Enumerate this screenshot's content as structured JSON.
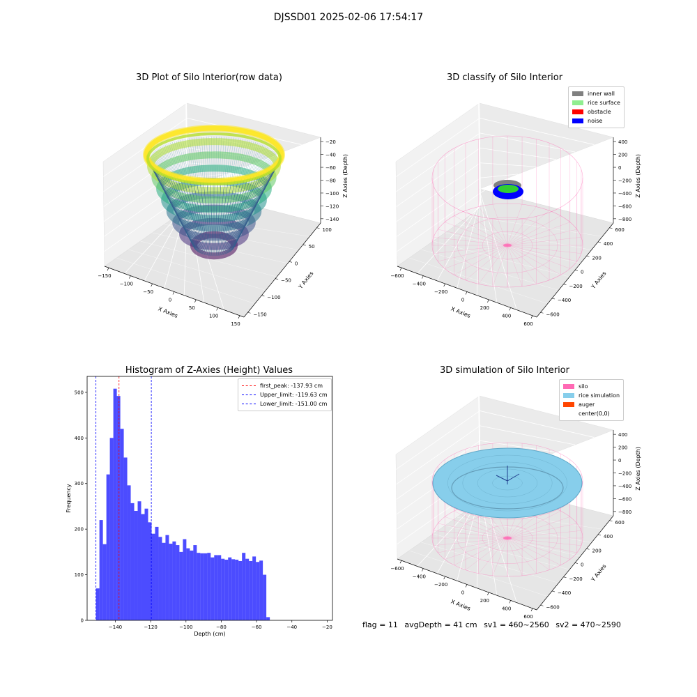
{
  "suptitle": "DJSSD01 2025-02-06 17:54:17",
  "footer": {
    "flag": "flag = 11",
    "avg": "avgDepth = 41 cm",
    "sv1": "sv1 = 460~2560",
    "sv2": "sv2 = 470~2590"
  },
  "chart_data": [
    {
      "type": "scatter",
      "title": "3D Plot of Silo Interior(row data)",
      "xlabel": "X Axies",
      "ylabel": "Y Axies",
      "zlabel": "Z Axies (Depth)",
      "xticks": [
        "−150",
        "−100",
        "−50",
        "0",
        "50",
        "100",
        "150"
      ],
      "yticks": [
        "−150",
        "−100",
        "−50",
        "0",
        "50",
        "100"
      ],
      "zticks": [
        "−20",
        "−40",
        "−60",
        "−80",
        "−100",
        "−120",
        "−140"
      ],
      "xlim": [
        -150,
        150
      ],
      "ylim": [
        -150,
        120
      ],
      "zlim": [
        -150,
        -20
      ],
      "colormap": "viridis"
    },
    {
      "type": "scatter",
      "title": "3D classify of Silo Interior",
      "xlabel": "X Axies",
      "ylabel": "Y Axies",
      "zlabel": "Z Axies (Depth)",
      "xticks": [
        "−600",
        "−400",
        "−200",
        "0",
        "200",
        "400",
        "600"
      ],
      "yticks": [
        "−600",
        "−400",
        "−200",
        "0",
        "200",
        "400",
        "600"
      ],
      "zticks": [
        "400",
        "200",
        "0",
        "−200",
        "−400",
        "−600",
        "−800"
      ],
      "legend_position": "top-right",
      "legend": [
        {
          "name": "inner wall",
          "color": "#808080"
        },
        {
          "name": "rice surface",
          "color": "#90ee90"
        },
        {
          "name": "obstacle",
          "color": "#ff0000"
        },
        {
          "name": "noise",
          "color": "#0000ff"
        }
      ]
    },
    {
      "type": "bar",
      "title": "Histogram of Z-Axies (Height) Values",
      "xlabel": "Depth (cm)",
      "ylabel": "Frequency",
      "xlim": [
        -156,
        -17
      ],
      "ylim": [
        0,
        535
      ],
      "xticks": [
        -140,
        -120,
        -100,
        -80,
        -60,
        -40,
        -20
      ],
      "yticks": [
        0,
        100,
        200,
        300,
        400,
        500
      ],
      "bin_start": -151,
      "bin_width": 1.97,
      "values": [
        70,
        220,
        167,
        320,
        400,
        508,
        492,
        420,
        357,
        296,
        257,
        240,
        261,
        233,
        245,
        215,
        190,
        205,
        183,
        170,
        187,
        168,
        173,
        165,
        150,
        178,
        158,
        153,
        165,
        148,
        147,
        147,
        148,
        138,
        143,
        143,
        135,
        133,
        138,
        134,
        133,
        130,
        148,
        135,
        130,
        140,
        128,
        131,
        100,
        7
      ],
      "bar_color": "#0000ff",
      "lines": [
        {
          "label": "first_peak: -137.93 cm",
          "x": -137.93,
          "color": "#ff0000"
        },
        {
          "label": "Upper_limit: -119.63 cm",
          "x": -119.63,
          "color": "#0000ff"
        },
        {
          "label": "Lower_limit: -151.00 cm",
          "x": -151.0,
          "color": "#0000ff"
        }
      ],
      "legend_position": "top-right"
    },
    {
      "type": "scatter",
      "title": "3D simulation of Silo Interior",
      "xlabel": "X Axies",
      "ylabel": "Y Axies",
      "zlabel": "Z Axies (Depth)",
      "xticks": [
        "−600",
        "−400",
        "−200",
        "0",
        "200",
        "400",
        "600"
      ],
      "yticks": [
        "−600",
        "−400",
        "−200",
        "0",
        "200",
        "400",
        "600"
      ],
      "zticks": [
        "400",
        "200",
        "0",
        "−200",
        "−400",
        "−600",
        "−800"
      ],
      "legend_position": "top-right",
      "legend": [
        {
          "name": "silo",
          "color": "#ff69b4"
        },
        {
          "name": "rice simulation",
          "color": "#87ceeb"
        },
        {
          "name": "auger",
          "color": "#ff4500"
        },
        {
          "name": "center(0,0)",
          "color": "#ffffff"
        }
      ]
    }
  ]
}
